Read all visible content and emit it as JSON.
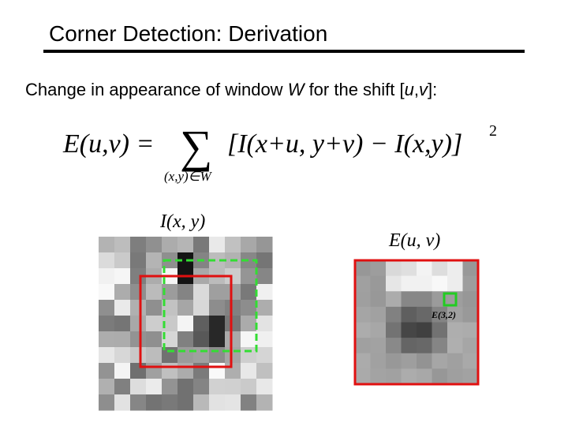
{
  "header": {
    "title": "Corner Detection: Derivation"
  },
  "subtitle": {
    "parts": [
      "Change in appearance of window ",
      "W",
      " for the shift [",
      "u",
      ",",
      "v",
      "]:"
    ]
  },
  "formula": {
    "lhs": "E(u,v) =",
    "sum": "∑",
    "sum_subscript": "(x,y)∈W",
    "body": "[I(x+u, y+v) − I(x,y)]",
    "exponent": "2"
  },
  "figures": {
    "image_label": "I(x, y)",
    "error_label": "E(u, v)",
    "point_label": "E(3,2)"
  }
}
